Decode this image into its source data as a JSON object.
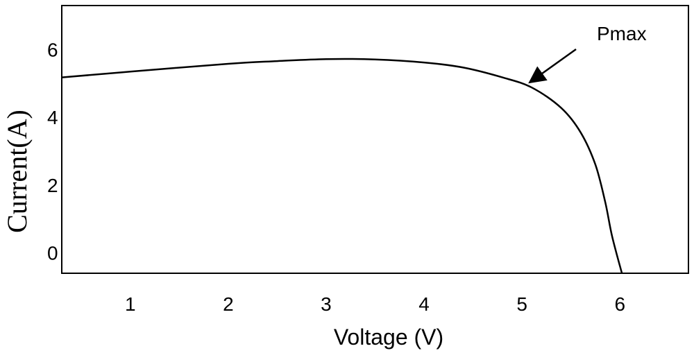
{
  "chart_data": {
    "type": "line",
    "xlabel": "Voltage (V)",
    "ylabel": "Current(A)",
    "xlim": [
      0.3,
      6.7
    ],
    "ylim": [
      -0.6,
      7.3
    ],
    "x_ticks": [
      1,
      2,
      3,
      4,
      5,
      6
    ],
    "y_ticks": [
      0,
      2,
      4,
      6
    ],
    "grid": false,
    "series": [
      {
        "points": [
          [
            0.3,
            5.18
          ],
          [
            1.0,
            5.35
          ],
          [
            2.0,
            5.58
          ],
          [
            2.5,
            5.66
          ],
          [
            3.0,
            5.72
          ],
          [
            3.5,
            5.71
          ],
          [
            4.0,
            5.62
          ],
          [
            4.4,
            5.47
          ],
          [
            4.8,
            5.18
          ],
          [
            5.1,
            4.88
          ],
          [
            5.4,
            4.28
          ],
          [
            5.6,
            3.55
          ],
          [
            5.75,
            2.6
          ],
          [
            5.85,
            1.5
          ],
          [
            5.92,
            0.5
          ],
          [
            6.02,
            -0.6
          ]
        ]
      }
    ],
    "annotations": [
      {
        "text": "Pmax",
        "target": [
          5.05,
          4.95
        ]
      }
    ]
  }
}
